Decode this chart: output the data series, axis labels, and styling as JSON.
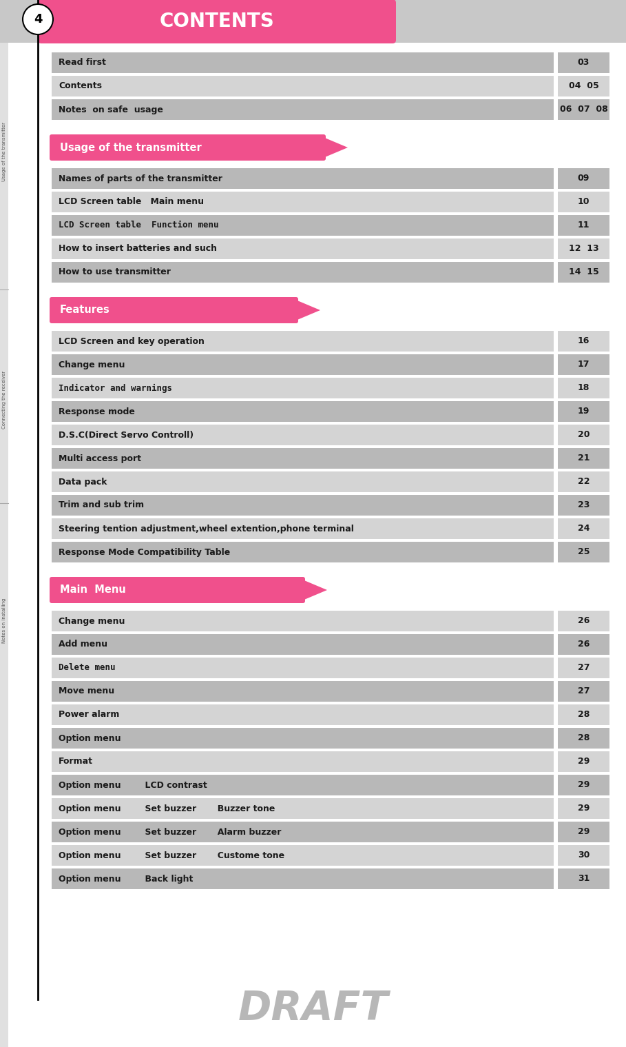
{
  "title": "CONTENTS",
  "title_color": "#ffffff",
  "title_bg": "#f0508c",
  "page_bg": "#ffffff",
  "page_num": "4",
  "draft_text": "DRAFT",
  "header_bg": "#c8c8c8",
  "colors": {
    "dark_row": "#b8b8b8",
    "light_row": "#d4d4d4",
    "text_dark": "#1a1a1a",
    "side_bar_line": "#222222",
    "side_bar_bg": "#e8e8e8"
  },
  "top_rows": [
    {
      "label": "Read first",
      "page": "03",
      "dark": true
    },
    {
      "label": "Contents",
      "page": "04  05",
      "dark": false
    },
    {
      "label": "Notes  on safe  usage",
      "page": "06  07  08",
      "dark": true
    }
  ],
  "section1_label": "Usage of the transmitter",
  "usage_rows": [
    {
      "label": "Names of parts of the transmitter",
      "page": "09",
      "dark": true,
      "mono": false
    },
    {
      "label": "LCD Screen table   Main menu",
      "page": "10",
      "dark": false,
      "mono": false
    },
    {
      "label": "LCD Screen table  Function menu",
      "page": "11",
      "dark": true,
      "mono": true
    },
    {
      "label": "How to insert batteries and such",
      "page": "12  13",
      "dark": false,
      "mono": false
    },
    {
      "label": "How to use transmitter",
      "page": "14  15",
      "dark": true,
      "mono": false
    }
  ],
  "section2_label": "Features",
  "features_rows": [
    {
      "label": "LCD Screen and key operation",
      "page": "16",
      "dark": false,
      "mono": false
    },
    {
      "label": "Change menu",
      "page": "17",
      "dark": true,
      "mono": false
    },
    {
      "label": "Indicator and warnings",
      "page": "18",
      "dark": false,
      "mono": true
    },
    {
      "label": "Response mode",
      "page": "19",
      "dark": true,
      "mono": false
    },
    {
      "label": "D.S.C(Direct Servo Controll)",
      "page": "20",
      "dark": false,
      "mono": false
    },
    {
      "label": "Multi access port",
      "page": "21",
      "dark": true,
      "mono": false
    },
    {
      "label": "Data pack",
      "page": "22",
      "dark": false,
      "mono": false
    },
    {
      "label": "Trim and sub trim",
      "page": "23",
      "dark": true,
      "mono": false
    },
    {
      "label": "Steering tention adjustment,wheel extention,phone terminal",
      "page": "24",
      "dark": false,
      "mono": false
    },
    {
      "label": "Response Mode Compatibility Table",
      "page": "25",
      "dark": true,
      "mono": false
    }
  ],
  "section3_label": "Main  Menu",
  "main_rows": [
    {
      "label": "Change menu",
      "page": "26",
      "dark": false,
      "mono": false
    },
    {
      "label": "Add menu",
      "page": "26",
      "dark": true,
      "mono": false
    },
    {
      "label": "Delete menu",
      "page": "27",
      "dark": false,
      "mono": true
    },
    {
      "label": "Move menu",
      "page": "27",
      "dark": true,
      "mono": false
    },
    {
      "label": "Power alarm",
      "page": "28",
      "dark": false,
      "mono": false
    },
    {
      "label": "Option menu",
      "page": "28",
      "dark": true,
      "mono": false
    },
    {
      "label": "Format",
      "page": "29",
      "dark": false,
      "mono": false
    },
    {
      "label": "Option menu        LCD contrast",
      "page": "29",
      "dark": true,
      "mono": false
    },
    {
      "label": "Option menu        Set buzzer       Buzzer tone",
      "page": "29",
      "dark": false,
      "mono": false
    },
    {
      "label": "Option menu        Set buzzer       Alarm buzzer",
      "page": "29",
      "dark": true,
      "mono": false
    },
    {
      "label": "Option menu        Set buzzer       Custome tone",
      "page": "30",
      "dark": false,
      "mono": false
    },
    {
      "label": "Option menu        Back light",
      "page": "31",
      "dark": true,
      "mono": false
    }
  ]
}
